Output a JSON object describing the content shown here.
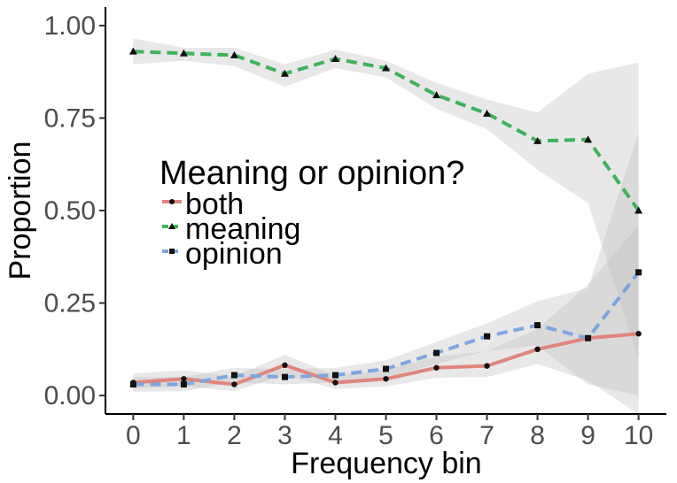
{
  "chart_data": {
    "type": "line",
    "title": "",
    "xlabel": "Frequency bin",
    "ylabel": "Proportion",
    "x": [
      0,
      1,
      2,
      3,
      4,
      5,
      6,
      7,
      8,
      9,
      10
    ],
    "xticks": [
      "0",
      "1",
      "2",
      "3",
      "4",
      "5",
      "6",
      "7",
      "8",
      "9",
      "10"
    ],
    "yticks": [
      "0.00",
      "0.25",
      "0.50",
      "0.75",
      "1.00"
    ],
    "ytick_values": [
      0,
      0.25,
      0.5,
      0.75,
      1.0
    ],
    "xlim": [
      -0.55,
      10.55
    ],
    "ylim": [
      -0.05,
      1.05
    ],
    "grid": false,
    "legend": {
      "title": "Meaning or opinion?",
      "placement": "center-left"
    },
    "series": [
      {
        "name": "both",
        "color": "#e0857c",
        "linestyle": "solid",
        "marker": "circle",
        "values": [
          0.035,
          0.045,
          0.03,
          0.082,
          0.035,
          0.045,
          0.075,
          0.08,
          0.125,
          0.155,
          0.167
        ],
        "lower": [
          0.018,
          0.025,
          0.012,
          0.055,
          0.018,
          0.025,
          0.048,
          0.05,
          0.085,
          0.04,
          -0.05
        ],
        "upper": [
          0.06,
          0.068,
          0.052,
          0.11,
          0.055,
          0.07,
          0.105,
          0.12,
          0.18,
          0.3,
          0.46
        ]
      },
      {
        "name": "meaning",
        "color": "#3db35a",
        "linestyle": "dashed",
        "marker": "triangle",
        "values": [
          0.93,
          0.925,
          0.92,
          0.87,
          0.91,
          0.885,
          0.812,
          0.762,
          0.688,
          0.692,
          0.5
        ],
        "lower": [
          0.895,
          0.905,
          0.89,
          0.835,
          0.885,
          0.86,
          0.775,
          0.72,
          0.61,
          0.52,
          0.1
        ],
        "upper": [
          0.965,
          0.94,
          0.94,
          0.895,
          0.935,
          0.905,
          0.845,
          0.8,
          0.765,
          0.87,
          0.9
        ]
      },
      {
        "name": "opinion",
        "color": "#7ea6e0",
        "linestyle": "dashed",
        "marker": "square",
        "values": [
          0.03,
          0.03,
          0.055,
          0.05,
          0.055,
          0.072,
          0.115,
          0.16,
          0.19,
          0.155,
          0.333
        ],
        "lower": [
          0.01,
          0.012,
          0.035,
          0.03,
          0.035,
          0.05,
          0.085,
          0.12,
          0.135,
          0.03,
          0.0
        ],
        "upper": [
          0.05,
          0.05,
          0.075,
          0.07,
          0.075,
          0.095,
          0.145,
          0.195,
          0.255,
          0.29,
          0.71
        ]
      }
    ]
  }
}
